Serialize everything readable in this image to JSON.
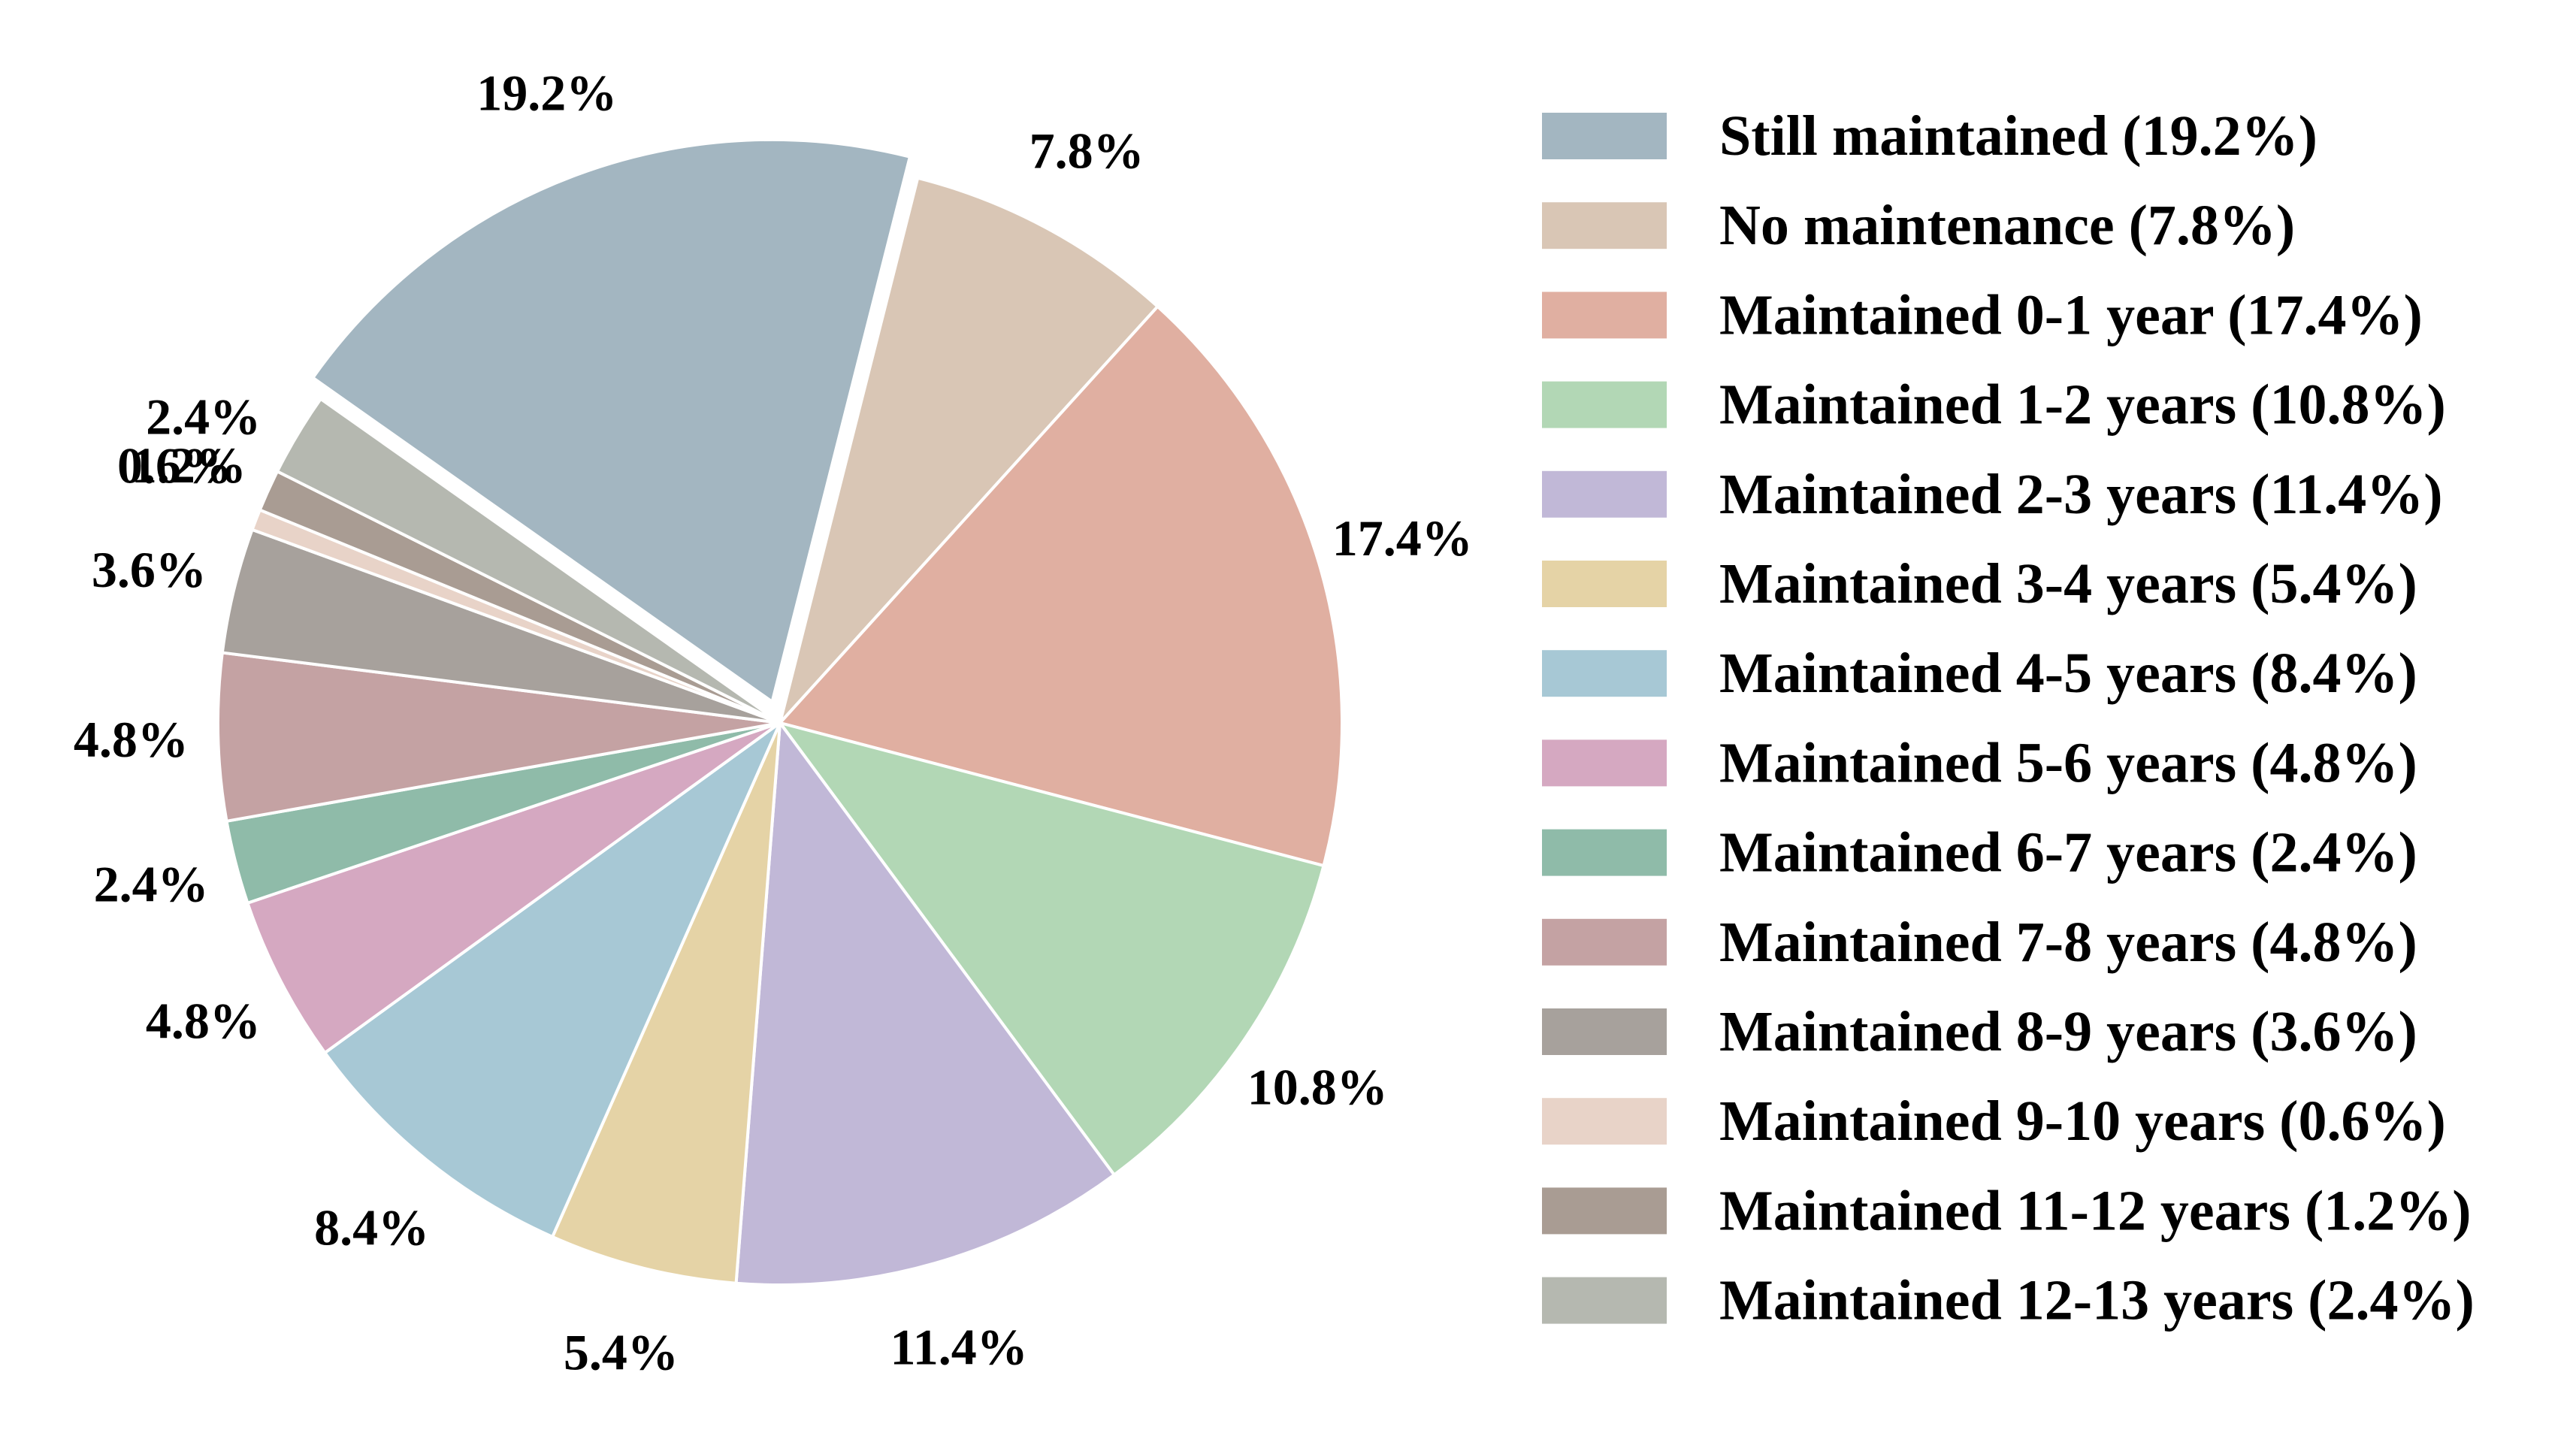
{
  "chart_data": {
    "type": "pie",
    "legend_position": "right",
    "start_angle_deg": 144.8,
    "direction": "clockwise",
    "exploded": [
      "Still maintained"
    ],
    "slices": [
      {
        "label": "Still maintained",
        "value": 19.2,
        "pct_label": "19.2%",
        "legend": "Still maintained (19.2%)",
        "color": "#a3b6c1"
      },
      {
        "label": "No maintenance",
        "value": 7.8,
        "pct_label": "7.8%",
        "legend": "No maintenance (7.8%)",
        "color": "#d9c6b5"
      },
      {
        "label": "Maintained 0-1 year",
        "value": 17.4,
        "pct_label": "17.4%",
        "legend": "Maintained 0-1 year (17.4%)",
        "color": "#e0afa1"
      },
      {
        "label": "Maintained 1-2 years",
        "value": 10.8,
        "pct_label": "10.8%",
        "legend": "Maintained 1-2 years (10.8%)",
        "color": "#b2d7b5"
      },
      {
        "label": "Maintained 2-3 years",
        "value": 11.4,
        "pct_label": "11.4%",
        "legend": "Maintained 2-3 years (11.4%)",
        "color": "#c1b8d7"
      },
      {
        "label": "Maintained 3-4 years",
        "value": 5.4,
        "pct_label": "5.4%",
        "legend": "Maintained 3-4 years (5.4%)",
        "color": "#e5d3a6"
      },
      {
        "label": "Maintained 4-5 years",
        "value": 8.4,
        "pct_label": "8.4%",
        "legend": "Maintained 4-5 years (8.4%)",
        "color": "#a7c8d5"
      },
      {
        "label": "Maintained 5-6 years",
        "value": 4.8,
        "pct_label": "4.8%",
        "legend": "Maintained 5-6 years (4.8%)",
        "color": "#d5a8c1"
      },
      {
        "label": "Maintained 6-7 years",
        "value": 2.4,
        "pct_label": "2.4%",
        "legend": "Maintained 6-7 years (2.4%)",
        "color": "#8fbba9"
      },
      {
        "label": "Maintained 7-8 years",
        "value": 4.8,
        "pct_label": "4.8%",
        "legend": "Maintained 7-8 years (4.8%)",
        "color": "#c4a2a3"
      },
      {
        "label": "Maintained 8-9 years",
        "value": 3.6,
        "pct_label": "3.6%",
        "legend": "Maintained 8-9 years (3.6%)",
        "color": "#a7a19c"
      },
      {
        "label": "Maintained 9-10 years",
        "value": 0.6,
        "pct_label": "0.6%",
        "legend": "Maintained 9-10 years (0.6%)",
        "color": "#e8d3c8"
      },
      {
        "label": "Maintained 11-12 years",
        "value": 1.2,
        "pct_label": "1.2%",
        "legend": "Maintained 11-12 years (1.2%)",
        "color": "#a99c93"
      },
      {
        "label": "Maintained 12-13 years",
        "value": 2.4,
        "pct_label": "2.4%",
        "legend": "Maintained 12-13 years (2.4%)",
        "color": "#b5b8b0"
      }
    ]
  }
}
